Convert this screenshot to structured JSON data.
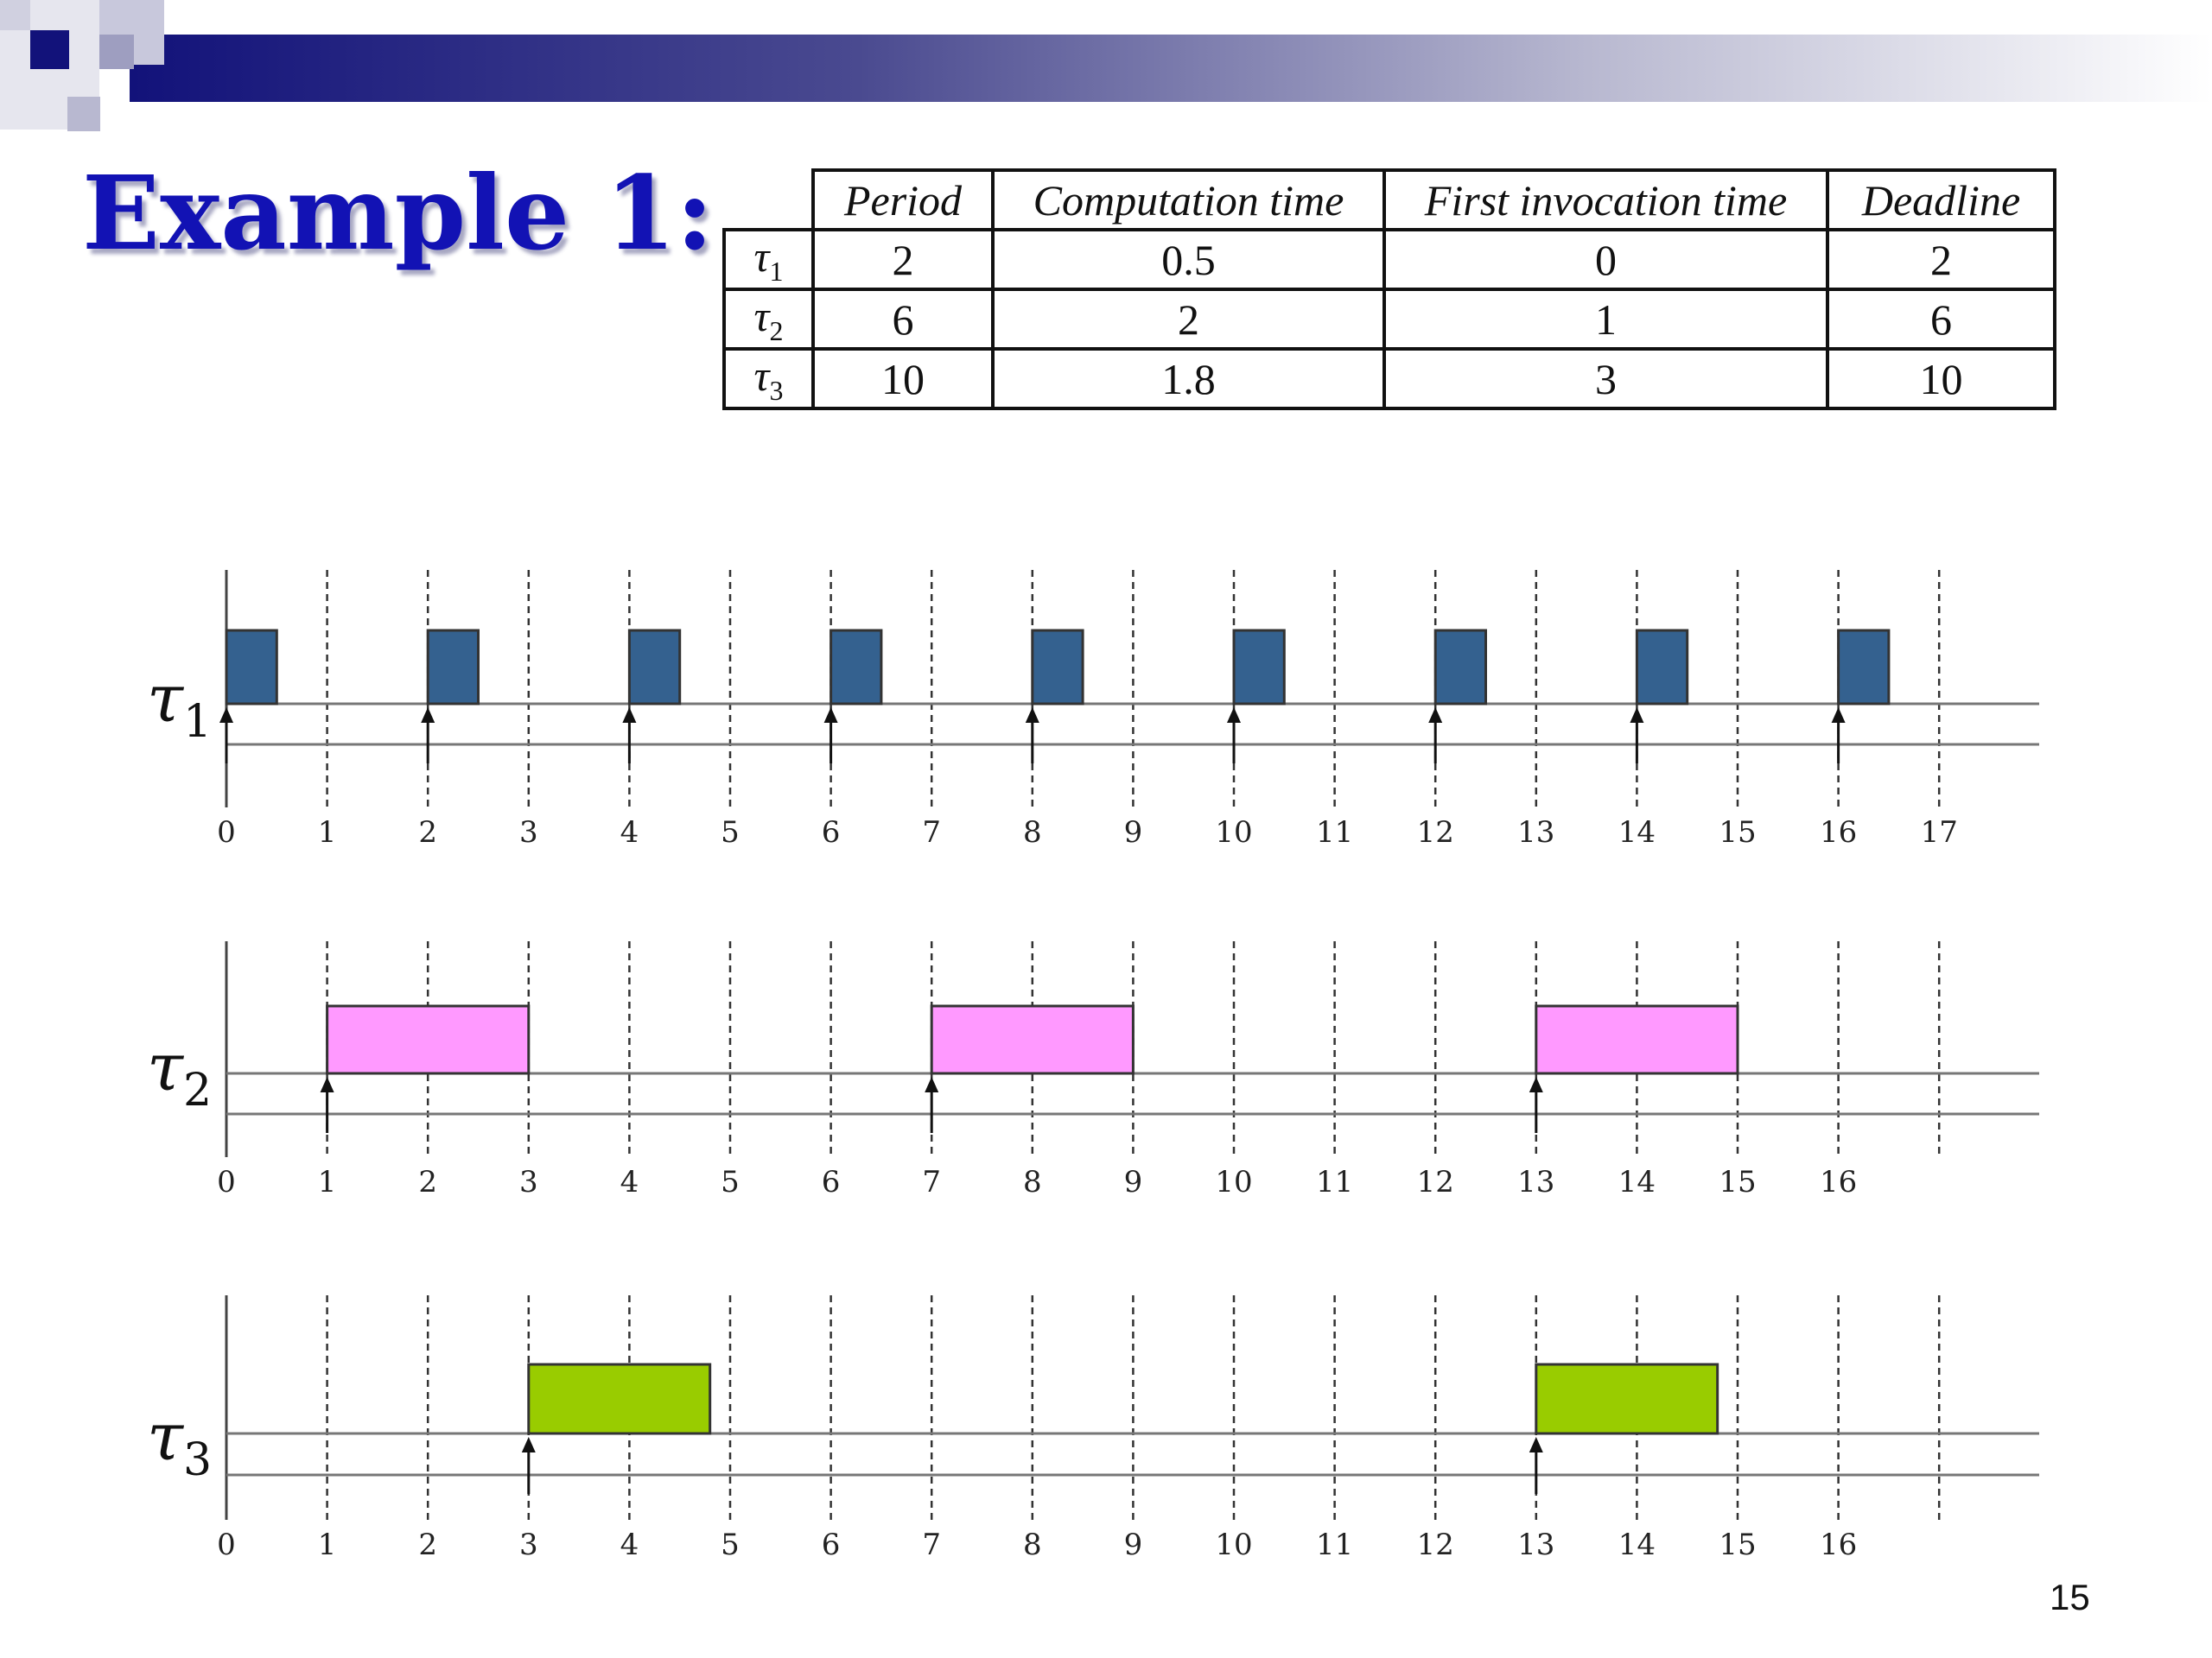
{
  "slide": {
    "title": "Example 1:",
    "page_number": "15"
  },
  "colors": {
    "title": "#1212b4",
    "tau1_block": "#34618f",
    "tau2_block": "#ff99ff",
    "tau3_block": "#99cc00",
    "axis": "#444444",
    "grid": "#333333"
  },
  "table": {
    "headers": [
      "Period",
      "Computation time",
      "First invocation time",
      "Deadline"
    ],
    "rows": [
      {
        "task_symbol": "τ",
        "task_index": "1",
        "cells": [
          "2",
          "0.5",
          "0",
          "2"
        ]
      },
      {
        "task_symbol": "τ",
        "task_index": "2",
        "cells": [
          "6",
          "2",
          "1",
          "6"
        ]
      },
      {
        "task_symbol": "τ",
        "task_index": "3",
        "cells": [
          "10",
          "1.8",
          "3",
          "10"
        ]
      }
    ]
  },
  "timelines": [
    {
      "label_symbol": "τ",
      "label_index": "1",
      "color_key": "tau1_block",
      "ticks": [
        "0",
        "1",
        "2",
        "3",
        "4",
        "5",
        "6",
        "7",
        "8",
        "9",
        "10",
        "11",
        "12",
        "13",
        "14",
        "15",
        "16",
        "17"
      ],
      "gridlines": [
        1,
        2,
        3,
        4,
        5,
        6,
        7,
        8,
        9,
        10,
        11,
        12,
        13,
        14,
        15,
        16,
        17
      ],
      "arrivals": [
        0,
        2,
        4,
        6,
        8,
        10,
        12,
        14,
        16
      ],
      "blocks": [
        [
          0,
          0.5
        ],
        [
          2,
          2.5
        ],
        [
          4,
          4.5
        ],
        [
          6,
          6.5
        ],
        [
          8,
          8.5
        ],
        [
          10,
          10.5
        ],
        [
          12,
          12.5
        ],
        [
          14,
          14.5
        ],
        [
          16,
          16.5
        ]
      ]
    },
    {
      "label_symbol": "τ",
      "label_index": "2",
      "color_key": "tau2_block",
      "ticks": [
        "0",
        "1",
        "2",
        "3",
        "4",
        "5",
        "6",
        "7",
        "8",
        "9",
        "10",
        "11",
        "12",
        "13",
        "14",
        "15",
        "16"
      ],
      "gridlines": [
        1,
        2,
        3,
        4,
        5,
        6,
        7,
        8,
        9,
        10,
        11,
        12,
        13,
        14,
        15,
        16,
        17
      ],
      "arrivals": [
        1,
        7,
        13
      ],
      "blocks": [
        [
          1,
          3
        ],
        [
          7,
          9
        ],
        [
          13,
          15
        ]
      ]
    },
    {
      "label_symbol": "τ",
      "label_index": "3",
      "color_key": "tau3_block",
      "ticks": [
        "0",
        "1",
        "2",
        "3",
        "4",
        "5",
        "6",
        "7",
        "8",
        "9",
        "10",
        "11",
        "12",
        "13",
        "14",
        "15",
        "16"
      ],
      "gridlines": [
        1,
        2,
        3,
        4,
        5,
        6,
        7,
        8,
        9,
        10,
        11,
        12,
        13,
        14,
        15,
        16,
        17
      ],
      "arrivals": [
        3,
        13
      ],
      "blocks": [
        [
          3,
          4.8
        ],
        [
          13,
          14.8
        ]
      ]
    }
  ]
}
